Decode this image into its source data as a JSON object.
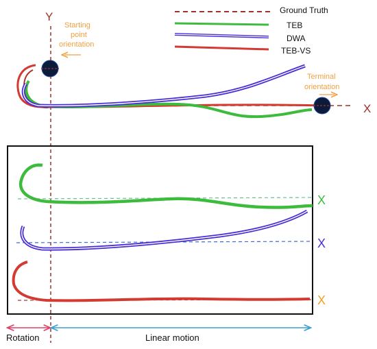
{
  "legend": {
    "ground_truth": "Ground Truth",
    "teb": "TEB",
    "dwa": "DWA",
    "teb_vs": "TEB-VS"
  },
  "axes": {
    "y_label": "Y",
    "x_label_top": "X",
    "x_label_teb": "X",
    "x_label_dwa": "X",
    "x_label_tebvs": "X"
  },
  "annotations": {
    "start_line1": "Starting",
    "start_line2": "point",
    "start_line3": "orientation",
    "terminal_line1": "Terminal",
    "terminal_line2": "orientation",
    "rotation": "Rotation",
    "linear_motion": "Linear motion"
  },
  "colors": {
    "ground_truth": "#a0312b",
    "teb": "#3dbb3d",
    "dwa": "#4a2fd6",
    "teb_vs": "#d23a32",
    "annotation_orange": "#f0a040",
    "rotation_arrow": "#e0406a",
    "linear_arrow": "#3aa0d0",
    "teb_x": "#3dbb3d",
    "dwa_x": "#4a2fd6",
    "tebvs_x": "#f0a020"
  }
}
